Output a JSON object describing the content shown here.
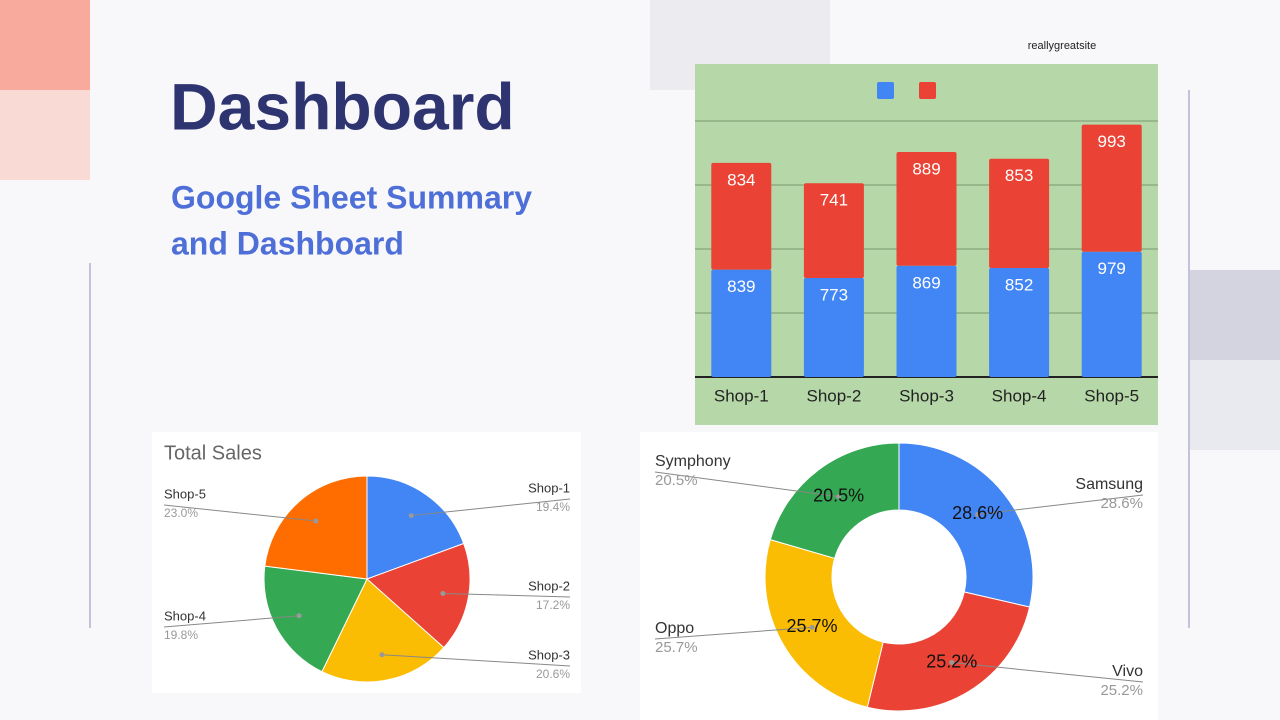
{
  "header": {
    "title": "Dashboard",
    "subtitle": [
      "Google Sheet Summary",
      "and Dashboard"
    ],
    "site": "reallygreatsite"
  },
  "chart_data": [
    {
      "type": "bar",
      "stacked": true,
      "background": "#b6d7a8",
      "categories": [
        "Shop-1",
        "Shop-2",
        "Shop-3",
        "Shop-4",
        "Shop-5"
      ],
      "series": [
        {
          "color": "#4285f4",
          "values": [
            839,
            773,
            869,
            852,
            979
          ]
        },
        {
          "color": "#ea4335",
          "values": [
            834,
            741,
            889,
            853,
            993
          ]
        }
      ],
      "ylim": [
        0,
        2000
      ],
      "yticks": [
        0,
        500,
        1000,
        1500,
        2000
      ],
      "grid": true,
      "legend": "top"
    },
    {
      "type": "pie",
      "title": "Total Sales",
      "categories": [
        "Shop-1",
        "Shop-2",
        "Shop-3",
        "Shop-4",
        "Shop-5"
      ],
      "values": [
        19.4,
        17.2,
        20.6,
        19.8,
        23.0
      ],
      "value_labels": [
        "19.4%",
        "17.2%",
        "20.6%",
        "19.8%",
        "23.0%"
      ],
      "colors": [
        "#4285f4",
        "#ea4335",
        "#fbbc04",
        "#34a853",
        "#ff6d01"
      ]
    },
    {
      "type": "donut",
      "categories": [
        "Samsung",
        "Vivo",
        "Oppo",
        "Symphony"
      ],
      "values": [
        28.6,
        25.2,
        25.7,
        20.5
      ],
      "value_labels": [
        "28.6%",
        "25.2%",
        "25.7%",
        "20.5%"
      ],
      "colors": [
        "#4285f4",
        "#ea4335",
        "#fbbc04",
        "#34a853"
      ]
    }
  ]
}
